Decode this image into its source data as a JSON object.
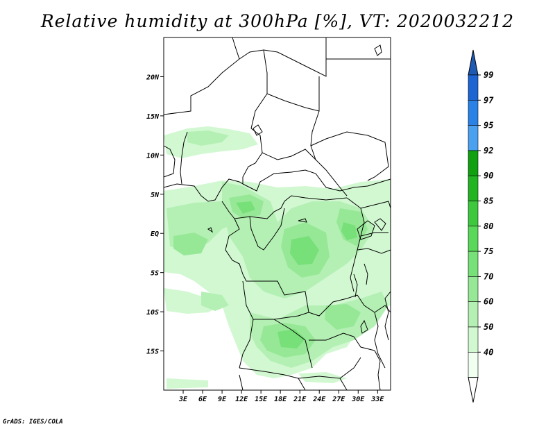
{
  "title": "Relative humidity at 300hPa [%], VT: 2020032212",
  "credit": "GrADS: IGES/COLA",
  "map": {
    "lon_range": [
      0,
      35
    ],
    "lat_range": [
      -20,
      25
    ],
    "lon_ticks": [
      "3E",
      "6E",
      "9E",
      "12E",
      "15E",
      "18E",
      "21E",
      "24E",
      "27E",
      "30E",
      "33E"
    ],
    "lat_ticks": [
      "20N",
      "15N",
      "10N",
      "5N",
      "EQ",
      "5S",
      "10S",
      "15S"
    ]
  },
  "colorbar": {
    "labels": [
      "99",
      "97",
      "95",
      "92",
      "90",
      "85",
      "80",
      "75",
      "70",
      "60",
      "50",
      "40"
    ],
    "colors": [
      "#1e64d2",
      "#2a82e6",
      "#4ba0f0",
      "#10a010",
      "#22b422",
      "#3ec83e",
      "#5ad85a",
      "#78e078",
      "#96e896",
      "#b4f0b4",
      "#d2f8d2",
      "#f0fff0"
    ],
    "top_arrow_color": "#1e5ab4"
  }
}
